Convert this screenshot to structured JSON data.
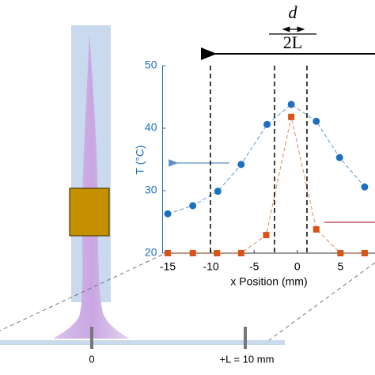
{
  "chart_data": {
    "type": "line",
    "xlabel": "x Position (mm)",
    "ylabel": "T (°C)",
    "xlim": [
      -15.6,
      9
    ],
    "ylim": [
      20,
      50
    ],
    "xticks": [
      -15,
      -10,
      -5,
      0,
      5
    ],
    "yticks": [
      20,
      30,
      40,
      50
    ],
    "series": [
      {
        "color": "#1f6fbf",
        "marker": "circle",
        "x": [
          -15,
          -12.1,
          -9.2,
          -6.5,
          -3.5,
          -0.7,
          2.2,
          4.9,
          7.8
        ],
        "values": [
          26.3,
          27.6,
          29.9,
          34.2,
          40.6,
          43.8,
          41.1,
          35.3,
          30.6
        ]
      },
      {
        "color": "#d95319",
        "marker": "square",
        "x": [
          -15,
          -12.1,
          -9.3,
          -6.5,
          -3.6,
          -0.7,
          2.2,
          5,
          7.8
        ],
        "values": [
          20,
          20,
          20,
          20,
          22.9,
          41.8,
          23.8,
          20,
          20
        ]
      }
    ]
  },
  "diagram": {
    "fraction_top": "d",
    "fraction_bottom": "2L",
    "origin_label": "0",
    "length_label": "+L = 10 mm"
  }
}
